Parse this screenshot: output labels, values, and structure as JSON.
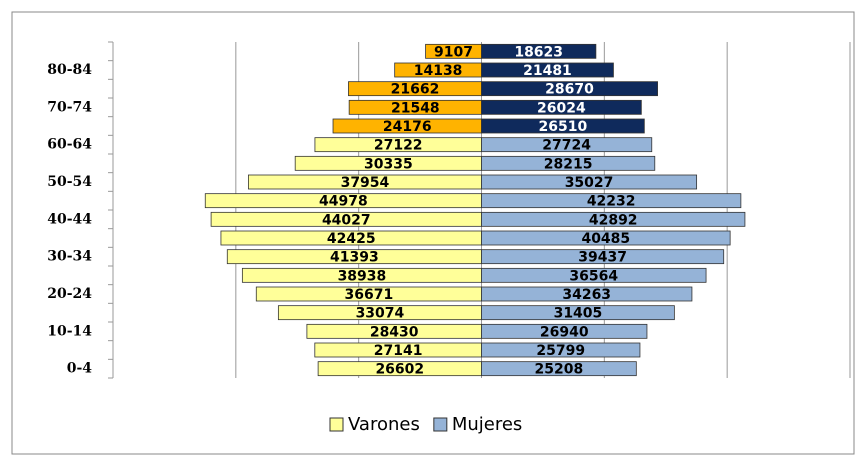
{
  "chart_data": {
    "type": "pyramid",
    "categories": [
      "0-4",
      null,
      "10-14",
      null,
      "20-24",
      null,
      "30-34",
      null,
      "40-44",
      null,
      "50-54",
      null,
      "60-64",
      null,
      "70-74",
      null,
      "80-84",
      null
    ],
    "series": [
      {
        "name": "Varones",
        "color": "#ffff99",
        "side": "left",
        "colors": [
          "#ffff99",
          "#ffff99",
          "#ffff99",
          "#ffff99",
          "#ffff99",
          "#ffff99",
          "#ffff99",
          "#ffff99",
          "#ffff99",
          "#ffff99",
          "#ffff99",
          "#ffff99",
          "#ffff99",
          "#ffb300",
          "#ffb300",
          "#ffb300",
          "#ffb300",
          "#ffb300"
        ],
        "values": [
          26602,
          27141,
          28430,
          33074,
          36671,
          38938,
          41393,
          42425,
          44027,
          44978,
          37954,
          30335,
          27122,
          24176,
          21548,
          21662,
          14138,
          9107
        ]
      },
      {
        "name": "Mujeres",
        "color": "#95b3d7",
        "side": "right",
        "colors": [
          "#95b3d7",
          "#95b3d7",
          "#95b3d7",
          "#95b3d7",
          "#95b3d7",
          "#95b3d7",
          "#95b3d7",
          "#95b3d7",
          "#95b3d7",
          "#95b3d7",
          "#95b3d7",
          "#95b3d7",
          "#95b3d7",
          "#0f2a5c",
          "#0f2a5c",
          "#0f2a5c",
          "#0f2a5c",
          "#0f2a5c"
        ],
        "values": [
          25208,
          25799,
          26940,
          31405,
          34263,
          36564,
          39437,
          40485,
          42892,
          42232,
          35027,
          28215,
          27724,
          26510,
          26024,
          28670,
          21481,
          18623
        ]
      }
    ],
    "xlim": [
      -60000,
      60000
    ],
    "xticks": [
      -60000,
      -40000,
      -20000,
      0,
      20000,
      40000,
      60000
    ],
    "grid": true,
    "legend": "bottom"
  }
}
